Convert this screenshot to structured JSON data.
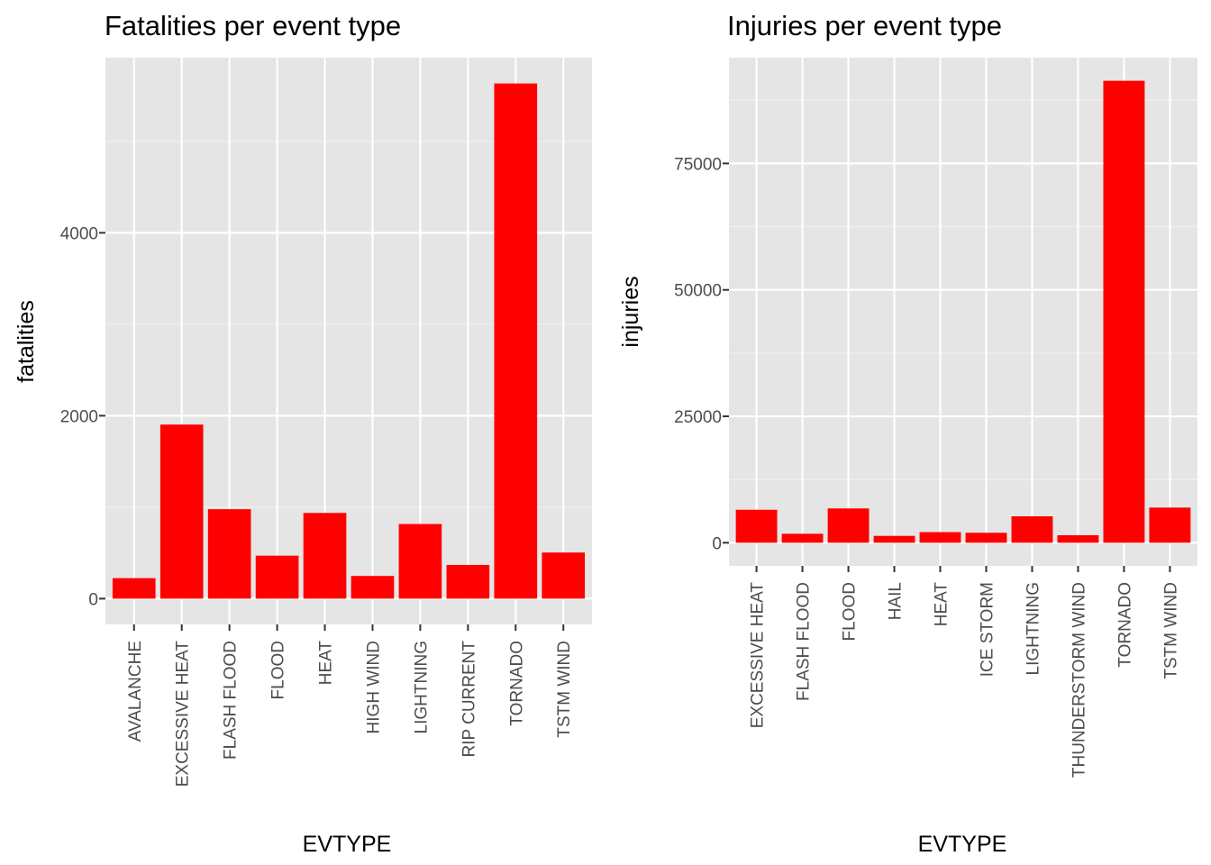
{
  "chart_data": [
    {
      "type": "bar",
      "title": "Fatalities per event type",
      "xlabel": "EVTYPE",
      "ylabel": "fatalities",
      "categories": [
        "AVALANCHE",
        "EXCESSIVE HEAT",
        "FLASH FLOOD",
        "FLOOD",
        "HEAT",
        "HIGH WIND",
        "LIGHTNING",
        "RIP CURRENT",
        "TORNADO",
        "TSTM WIND"
      ],
      "values": [
        224,
        1903,
        978,
        470,
        937,
        248,
        816,
        368,
        5633,
        504
      ],
      "yticks": [
        0,
        2000,
        4000
      ],
      "ylim": [
        -282,
        5915
      ],
      "bar_color": "#ff0000",
      "panel_background": "#e5e5e5",
      "grid": true,
      "legend": "none"
    },
    {
      "type": "bar",
      "title": "Injuries per event type",
      "xlabel": "EVTYPE",
      "ylabel": "injuries",
      "categories": [
        "EXCESSIVE HEAT",
        "FLASH FLOOD",
        "FLOOD",
        "HAIL",
        "HEAT",
        "ICE STORM",
        "LIGHTNING",
        "THUNDERSTORM WIND",
        "TORNADO",
        "TSTM WIND"
      ],
      "values": [
        6525,
        1777,
        6789,
        1361,
        2100,
        1975,
        5230,
        1488,
        91346,
        6957
      ],
      "yticks": [
        0,
        25000,
        50000,
        75000
      ],
      "ylim": [
        -4567,
        95913
      ],
      "bar_color": "#ff0000",
      "panel_background": "#e5e5e5",
      "grid": true,
      "legend": "none"
    }
  ]
}
